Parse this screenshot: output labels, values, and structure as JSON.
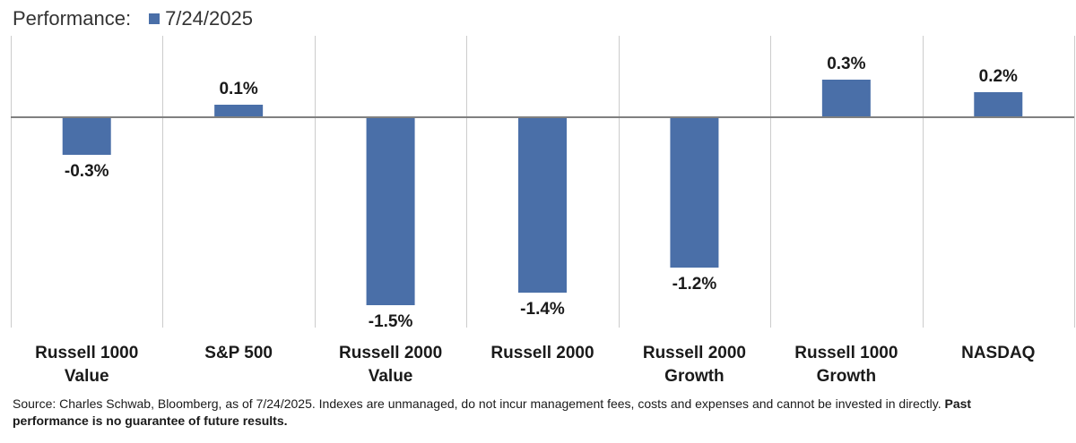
{
  "legend": {
    "title": "Performance:",
    "series_label": "7/24/2025"
  },
  "colors": {
    "bar": "#4a6fa8",
    "gridline": "#cccccc",
    "zero_line": "#808080"
  },
  "chart_data": {
    "type": "bar",
    "categories": [
      [
        "Russell 1000",
        "Value"
      ],
      [
        "S&P 500"
      ],
      [
        "Russell 2000",
        "Value"
      ],
      [
        "Russell 2000"
      ],
      [
        "Russell 2000",
        "Growth"
      ],
      [
        "Russell 1000",
        "Growth"
      ],
      [
        "NASDAQ"
      ]
    ],
    "series": [
      {
        "name": "7/24/2025",
        "values": [
          -0.3,
          0.1,
          -1.5,
          -1.4,
          -1.2,
          0.3,
          0.2
        ],
        "labels": [
          "-0.3%",
          "0.1%",
          "-1.5%",
          "-1.4%",
          "-1.2%",
          "0.3%",
          "0.2%"
        ]
      }
    ],
    "ylim": [
      -1.65,
      0.65
    ],
    "grid": "vertical category separators",
    "legend_position": "top-left"
  },
  "footnote": {
    "text": "Source: Charles Schwab, Bloomberg, as of 7/24/2025. Indexes are unmanaged, do not incur management fees, costs and expenses and cannot be invested in directly. ",
    "bold_text": "Past performance is no guarantee of future results."
  }
}
